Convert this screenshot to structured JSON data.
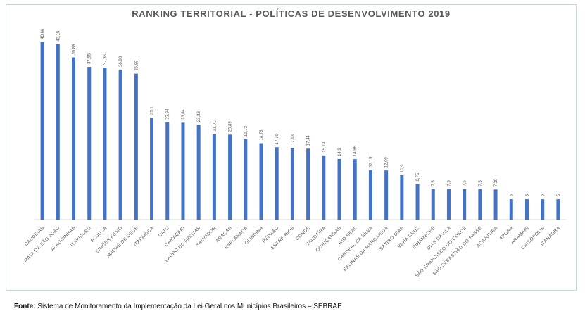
{
  "source": {
    "label": "Fonte:",
    "text": "Sistema de Monitoramento da Implementação da Lei Geral nos Municípios Brasileiros – SEBRAE."
  },
  "chart_data": {
    "type": "bar",
    "title": "RANKING TERRITORIAL - POLÍTICAS DE DESENVOLVIMENTO 2019",
    "bar_color": "#4472c4",
    "axis_color": "#d9d9d9",
    "label_color": "#595959",
    "ylim": [
      0,
      45
    ],
    "grid": false,
    "categories": [
      "CANDEIAS",
      "MATA DE SÃO JOÃO",
      "ALAGOINHAS",
      "ITAPICURU",
      "POJUCA",
      "SIMÕES FILHO",
      "MADRE DE DEUS",
      "ITAPARICA",
      "CATU",
      "CAMAÇARI",
      "LAURO DE FREITAS",
      "SALVADOR",
      "ARAÇÁS",
      "ESPLANADA",
      "OLINDINA",
      "PEDRÃO",
      "ENTRE RIOS",
      "CONDE",
      "JANDAÍRA",
      "OURIÇANGAS",
      "RIO REAL",
      "CARDEAL DA SILVA",
      "SALINAS DA MARGARIDA",
      "SÁTIRO DIAS",
      "VERA CRUZ",
      "INHAMBUPE",
      "DIAS DÁVILA",
      "SÃO FRANCISCO DO CONDE",
      "SÃO SEBASTIÃO DO PASSE",
      "ACAJUTIBA",
      "APORÁ",
      "ARAMARI",
      "CRISÓPOLIS",
      "ITANAGRA"
    ],
    "values": [
      43.66,
      43.15,
      39.89,
      37.55,
      37.36,
      36.88,
      35.89,
      25.1,
      23.94,
      23.84,
      23.33,
      21.01,
      20.89,
      19.73,
      18.78,
      17.79,
      17.63,
      17.44,
      15.79,
      14.9,
      14.86,
      12.19,
      12.09,
      10.9,
      8.75,
      7.5,
      7.5,
      7.5,
      7.5,
      7.39,
      5,
      5,
      5,
      5
    ],
    "value_labels": [
      "43,66",
      "43,15",
      "39,89",
      "37,55",
      "37,36",
      "36,88",
      "35,89",
      "25,1",
      "23,94",
      "23,84",
      "23,33",
      "21,01",
      "20,89",
      "19,73",
      "18,78",
      "17,79",
      "17,63",
      "17,44",
      "15,79",
      "14,9",
      "14,86",
      "12,19",
      "12,09",
      "10,9",
      "8,75",
      "7,5",
      "7,5",
      "7,5",
      "7,5",
      "7,39",
      "5",
      "5",
      "5",
      "5"
    ]
  }
}
